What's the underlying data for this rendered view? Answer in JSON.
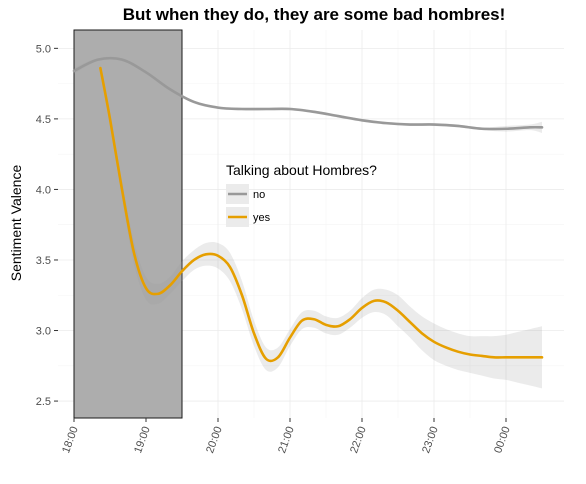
{
  "chart_data": {
    "type": "line",
    "title": "But when they do, they are some bad hombres!",
    "ylabel": "Sentiment Valence",
    "xlabel": "",
    "x_ticks": [
      "18:00",
      "19:00",
      "20:00",
      "21:00",
      "22:00",
      "23:00",
      "00:00"
    ],
    "y_ticks": [
      "2.5",
      "3.0",
      "3.5",
      "4.0",
      "4.5",
      "5.0"
    ],
    "xlim": [
      "18:00",
      "00:30"
    ],
    "ylim": [
      2.38,
      5.13
    ],
    "grid": true,
    "legend": {
      "title": "Talking about Hombres?",
      "placement": "center",
      "entries": [
        "no",
        "yes"
      ]
    },
    "highlight_region": {
      "x_start": "18:00",
      "x_end": "19:30",
      "color": "#adadad"
    },
    "series": [
      {
        "name": "no",
        "color": "#999999",
        "x": [
          "18:00",
          "18:20",
          "18:40",
          "19:00",
          "19:20",
          "19:40",
          "20:00",
          "20:20",
          "20:40",
          "21:00",
          "21:20",
          "21:40",
          "22:00",
          "22:20",
          "22:40",
          "23:00",
          "23:20",
          "23:40",
          "00:00",
          "00:20",
          "00:30"
        ],
        "y": [
          4.84,
          4.92,
          4.92,
          4.83,
          4.71,
          4.62,
          4.58,
          4.57,
          4.57,
          4.57,
          4.55,
          4.52,
          4.49,
          4.47,
          4.46,
          4.46,
          4.45,
          4.43,
          4.43,
          4.44,
          4.44
        ],
        "ci_low": [
          4.82,
          4.91,
          4.91,
          4.82,
          4.7,
          4.61,
          4.57,
          4.56,
          4.56,
          4.56,
          4.54,
          4.51,
          4.48,
          4.46,
          4.45,
          4.45,
          4.44,
          4.42,
          4.41,
          4.42,
          4.4
        ],
        "ci_high": [
          4.86,
          4.93,
          4.93,
          4.84,
          4.72,
          4.63,
          4.59,
          4.58,
          4.58,
          4.58,
          4.56,
          4.53,
          4.5,
          4.48,
          4.47,
          4.47,
          4.46,
          4.44,
          4.45,
          4.46,
          4.48
        ]
      },
      {
        "name": "yes",
        "color": "#e69f00",
        "x": [
          "18:22",
          "18:30",
          "18:40",
          "18:50",
          "19:00",
          "19:10",
          "19:20",
          "19:30",
          "19:40",
          "19:50",
          "20:00",
          "20:10",
          "20:20",
          "20:30",
          "20:40",
          "20:50",
          "21:00",
          "21:10",
          "21:20",
          "21:30",
          "21:40",
          "21:50",
          "22:00",
          "22:10",
          "22:20",
          "22:30",
          "22:40",
          "22:50",
          "23:00",
          "23:10",
          "23:20",
          "23:30",
          "23:40",
          "23:50",
          "00:00",
          "00:10",
          "00:20",
          "00:30"
        ],
        "y": [
          4.86,
          4.5,
          4.0,
          3.55,
          3.3,
          3.26,
          3.32,
          3.42,
          3.5,
          3.54,
          3.53,
          3.45,
          3.25,
          2.98,
          2.8,
          2.81,
          2.95,
          3.07,
          3.08,
          3.04,
          3.03,
          3.08,
          3.16,
          3.21,
          3.2,
          3.14,
          3.06,
          2.98,
          2.92,
          2.88,
          2.85,
          2.83,
          2.82,
          2.81,
          2.81,
          2.81,
          2.81,
          2.81
        ],
        "ci_low": [
          4.84,
          4.46,
          3.94,
          3.47,
          3.22,
          3.19,
          3.26,
          3.35,
          3.43,
          3.46,
          3.44,
          3.35,
          3.15,
          2.89,
          2.72,
          2.74,
          2.89,
          3.01,
          3.02,
          2.98,
          2.97,
          3.02,
          3.09,
          3.13,
          3.11,
          3.03,
          2.95,
          2.86,
          2.79,
          2.75,
          2.72,
          2.7,
          2.68,
          2.66,
          2.65,
          2.63,
          2.61,
          2.59
        ],
        "ci_high": [
          4.88,
          4.54,
          4.06,
          3.63,
          3.38,
          3.33,
          3.38,
          3.49,
          3.57,
          3.62,
          3.62,
          3.55,
          3.35,
          3.07,
          2.88,
          2.88,
          3.01,
          3.13,
          3.14,
          3.1,
          3.09,
          3.14,
          3.23,
          3.29,
          3.29,
          3.25,
          3.17,
          3.1,
          3.05,
          3.01,
          2.98,
          2.96,
          2.96,
          2.96,
          2.97,
          2.99,
          3.01,
          3.03
        ]
      }
    ]
  }
}
